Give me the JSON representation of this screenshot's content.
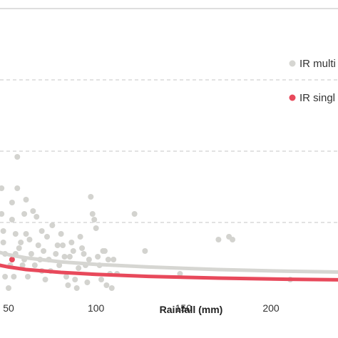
{
  "chart_data": {
    "type": "scatter",
    "xlabel": "Rainfall (mm)",
    "ylabel": "",
    "title": "",
    "xlim": [
      45,
      240
    ],
    "ylim": [
      0,
      1
    ],
    "x_ticks": [
      50,
      100,
      150,
      200
    ],
    "grid": "dashed horizontal",
    "legend_position": "right",
    "legend": [
      {
        "label": "IR multi",
        "color": "#d6d6d2"
      },
      {
        "label": "IR singl",
        "color": "#e8495b"
      }
    ],
    "series": [
      {
        "name": "IR multi",
        "color": "#d3d3cf",
        "points": [
          [
            46,
            0.37
          ],
          [
            47,
            0.18
          ],
          [
            48,
            0.14
          ],
          [
            47,
            0.22
          ],
          [
            46,
            0.28
          ],
          [
            48,
            0.06
          ],
          [
            50,
            0.02
          ],
          [
            51,
            0.1
          ],
          [
            52,
            0.26
          ],
          [
            53,
            0.06
          ],
          [
            54,
            0.21
          ],
          [
            56,
            0.16
          ],
          [
            54,
            0.14
          ],
          [
            55,
            0.48
          ],
          [
            55,
            0.37
          ],
          [
            57,
            0.18
          ],
          [
            58,
            0.1
          ],
          [
            59,
            0.28
          ],
          [
            60,
            0.21
          ],
          [
            59,
            0.12
          ],
          [
            61,
            0.06
          ],
          [
            62,
            0.19
          ],
          [
            63,
            0.14
          ],
          [
            64,
            0.29
          ],
          [
            65,
            0.1
          ],
          [
            66,
            0.27
          ],
          [
            67,
            0.17
          ],
          [
            68,
            0.12
          ],
          [
            69,
            0.22
          ],
          [
            70,
            0.15
          ],
          [
            72,
            0.2
          ],
          [
            73,
            0.12
          ],
          [
            74,
            0.08
          ],
          [
            75,
            0.24
          ],
          [
            77,
            0.14
          ],
          [
            78,
            0.17
          ],
          [
            79,
            0.1
          ],
          [
            80,
            0.21
          ],
          [
            81,
            0.17
          ],
          [
            82,
            0.13
          ],
          [
            83,
            0.06
          ],
          [
            84,
            0.03
          ],
          [
            85,
            0.13
          ],
          [
            86,
            0.18
          ],
          [
            87,
            0.15
          ],
          [
            88,
            0.05
          ],
          [
            89,
            0.02
          ],
          [
            90,
            0.09
          ],
          [
            91,
            0.2
          ],
          [
            92,
            0.16
          ],
          [
            93,
            0.14
          ],
          [
            94,
            0.1
          ],
          [
            95,
            0.04
          ],
          [
            96,
            0.12
          ],
          [
            97,
            0.34
          ],
          [
            98,
            0.28
          ],
          [
            99,
            0.26
          ],
          [
            100,
            0.23
          ],
          [
            101,
            0.13
          ],
          [
            102,
            0.1
          ],
          [
            103,
            0.05
          ],
          [
            104,
            0.15
          ],
          [
            105,
            0.15
          ],
          [
            106,
            0.03
          ],
          [
            107,
            0.12
          ],
          [
            108,
            0.07
          ],
          [
            109,
            0.02
          ],
          [
            110,
            0.12
          ],
          [
            112,
            0.07
          ],
          [
            122,
            0.28
          ],
          [
            128,
            0.15
          ],
          [
            148,
            0.07
          ],
          [
            170,
            0.19
          ],
          [
            176,
            0.2
          ],
          [
            178,
            0.19
          ],
          [
            211,
            0.05
          ],
          [
            69,
            0.08
          ],
          [
            71,
            0.05
          ],
          [
            52,
            0.32
          ],
          [
            60,
            0.33
          ]
        ]
      },
      {
        "name": "IR singl",
        "color": "#e8495b",
        "points": [
          [
            52,
            0.12
          ]
        ]
      }
    ],
    "trend_lines": [
      {
        "name": "IR multi",
        "color": "#d6d6d2",
        "points": [
          [
            45,
            0.145
          ],
          [
            50,
            0.137
          ],
          [
            60,
            0.126
          ],
          [
            80,
            0.112
          ],
          [
            100,
            0.103
          ],
          [
            130,
            0.094
          ],
          [
            170,
            0.085
          ],
          [
            210,
            0.079
          ],
          [
            240,
            0.076
          ]
        ]
      },
      {
        "name": "IR singl",
        "color": "#e8495b",
        "points": [
          [
            45,
            0.1
          ],
          [
            50,
            0.094
          ],
          [
            60,
            0.085
          ],
          [
            80,
            0.075
          ],
          [
            100,
            0.068
          ],
          [
            130,
            0.061
          ],
          [
            170,
            0.055
          ],
          [
            210,
            0.051
          ],
          [
            240,
            0.049
          ]
        ]
      }
    ]
  }
}
